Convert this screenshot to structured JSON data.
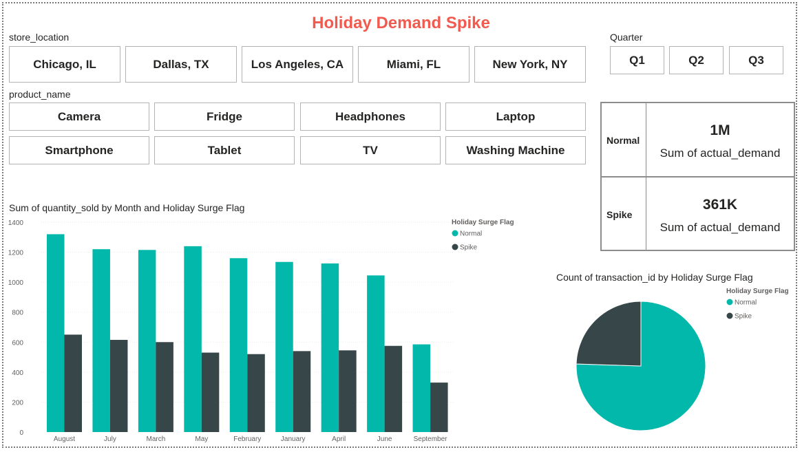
{
  "page": {
    "title": "Holiday Demand Spike"
  },
  "store_location": {
    "label": "store_location",
    "options": [
      "Chicago, IL",
      "Dallas, TX",
      "Los Angeles, CA",
      "Miami, FL",
      "New York, NY"
    ]
  },
  "quarter": {
    "label": "Quarter",
    "options": [
      "Q1",
      "Q2",
      "Q3"
    ]
  },
  "product_name": {
    "label": "product_name",
    "options": [
      "Camera",
      "Fridge",
      "Headphones",
      "Laptop",
      "Smartphone",
      "Tablet",
      "TV",
      "Washing Machine"
    ]
  },
  "cards": {
    "normal": {
      "label": "Normal",
      "value": "1M",
      "caption": "Sum of actual_demand"
    },
    "spike": {
      "label": "Spike",
      "value": "361K",
      "caption": "Sum of actual_demand"
    }
  },
  "colors": {
    "normal": "#01b8aa",
    "spike": "#374649",
    "title": "#f05a4f"
  },
  "chart_data": [
    {
      "type": "bar",
      "title": "Sum of quantity_sold by Month and Holiday Surge Flag",
      "xlabel": "",
      "ylabel": "",
      "legend_title": "Holiday Surge Flag",
      "legend_position": "top-right",
      "categories": [
        "August",
        "July",
        "March",
        "May",
        "February",
        "January",
        "April",
        "June",
        "September"
      ],
      "series": [
        {
          "name": "Normal",
          "values": [
            1320,
            1220,
            1215,
            1240,
            1160,
            1135,
            1125,
            1045,
            585
          ]
        },
        {
          "name": "Spike",
          "values": [
            650,
            615,
            600,
            530,
            520,
            540,
            545,
            575,
            330
          ]
        }
      ],
      "yticks": [
        "0",
        "200",
        "400",
        "600",
        "800",
        "1000",
        "1200",
        "1400"
      ],
      "ylim": [
        0,
        1400
      ],
      "grid": true
    },
    {
      "type": "pie",
      "title": "Count of transaction_id by Holiday Surge Flag",
      "legend_title": "Holiday Surge Flag",
      "legend_position": "top-right",
      "categories": [
        "Normal",
        "Spike"
      ],
      "values": [
        75.5,
        24.5
      ]
    }
  ]
}
